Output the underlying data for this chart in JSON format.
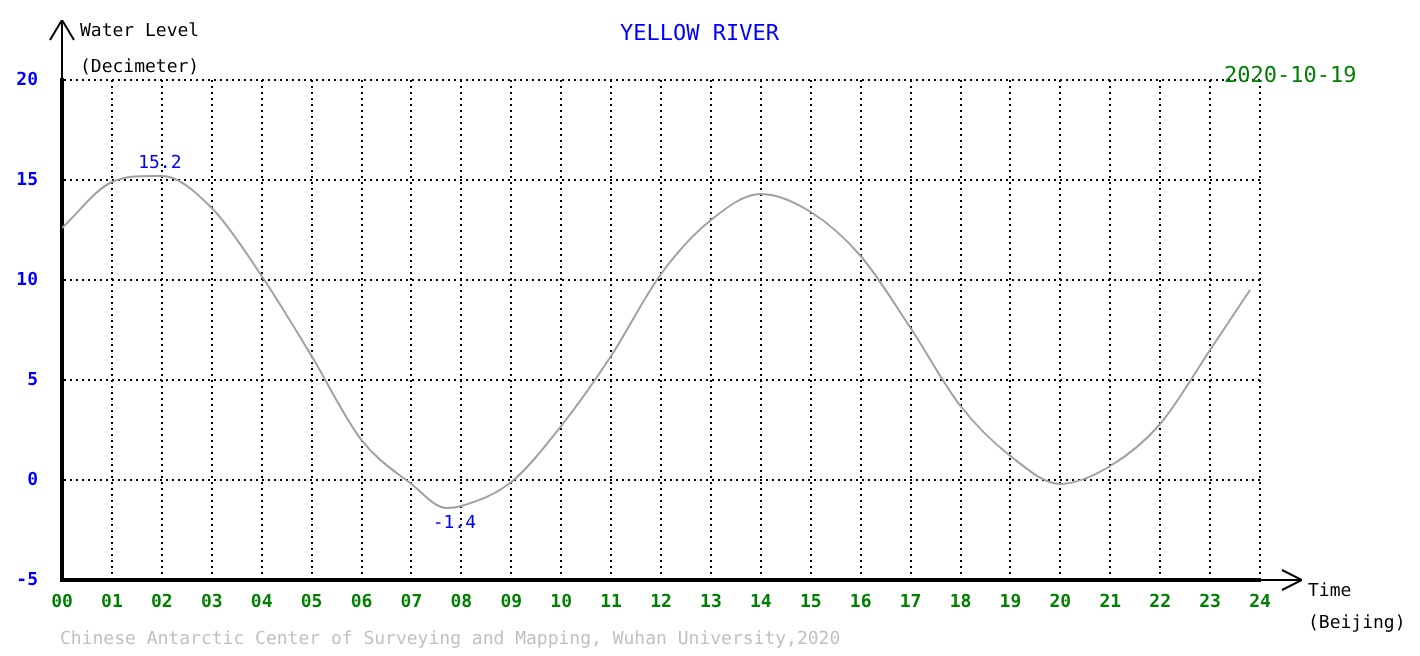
{
  "chart_data": {
    "type": "line",
    "title": "YELLOW RIVER",
    "xlabel": "Time (Beijing)",
    "ylabel": "Water Level (Decimeter)",
    "annotations": [
      "2020-10-19",
      "Chinese Antarctic Center of Surveying and Mapping, Wuhan University,2020",
      {
        "text": "15.2",
        "x": 1.8,
        "y": 15.2
      },
      {
        "text": "-1.4",
        "x": 7.7,
        "y": -1.4
      }
    ],
    "x": [
      0,
      1,
      1.8,
      2,
      3,
      4,
      5,
      6,
      7,
      7.7,
      8,
      9,
      10,
      11,
      12,
      13,
      14,
      15,
      16,
      17,
      18,
      19,
      20,
      21,
      22,
      23,
      23.8
    ],
    "values": [
      12.6,
      14.9,
      15.2,
      15.2,
      13.6,
      10.2,
      6.2,
      2.0,
      -0.2,
      -1.4,
      -1.3,
      -0.1,
      2.7,
      6.2,
      10.3,
      13.0,
      14.3,
      13.4,
      11.2,
      7.6,
      3.7,
      1.2,
      -0.2,
      0.7,
      2.8,
      6.5,
      9.5
    ],
    "color": "#a0a0a0",
    "xlim": [
      0,
      24
    ],
    "xticks": [
      {
        "value": 0,
        "label": "00"
      },
      {
        "value": 1,
        "label": "01"
      },
      {
        "value": 2,
        "label": "02"
      },
      {
        "value": 3,
        "label": "03"
      },
      {
        "value": 4,
        "label": "04"
      },
      {
        "value": 5,
        "label": "05"
      },
      {
        "value": 6,
        "label": "06"
      },
      {
        "value": 7,
        "label": "07"
      },
      {
        "value": 8,
        "label": "08"
      },
      {
        "value": 9,
        "label": "09"
      },
      10,
      11,
      12,
      13,
      14,
      15,
      16,
      17,
      18,
      19,
      20,
      21,
      22,
      23,
      24
    ],
    "ylim": [
      -5,
      20
    ],
    "yticks": [
      -5,
      0,
      5,
      10,
      15,
      20
    ],
    "grid": true
  }
}
